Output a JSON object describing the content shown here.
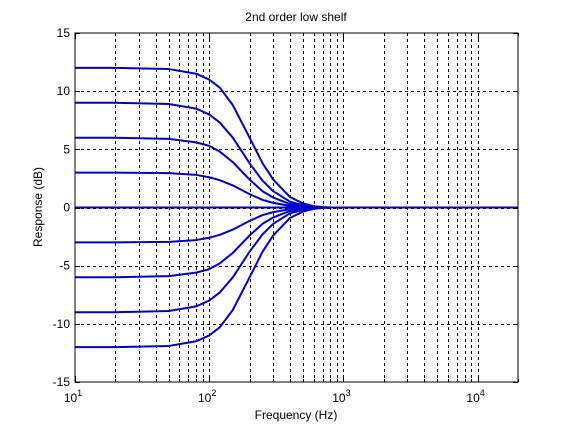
{
  "chart_data": {
    "type": "line",
    "title": "2nd order low shelf",
    "xlabel": "Frequency (Hz)",
    "ylabel": "Response (dB)",
    "xscale": "log",
    "xlim": [
      10,
      20000
    ],
    "ylim": [
      -15,
      15
    ],
    "grid": true,
    "x_tick_labels": [
      {
        "value": 10,
        "base": "10",
        "exp": "1"
      },
      {
        "value": 100,
        "base": "10",
        "exp": "2"
      },
      {
        "value": 1000,
        "base": "10",
        "exp": "3"
      },
      {
        "value": 10000,
        "base": "10",
        "exp": "4"
      }
    ],
    "y_ticks": [
      -15,
      -10,
      -5,
      0,
      5,
      10,
      15
    ],
    "y_tick_labels": [
      "-15",
      "-10",
      "-5",
      "0",
      "5",
      "10",
      "15"
    ],
    "line_color": "#0000cc",
    "shelf_gains_db": [
      12,
      9,
      6,
      3,
      0,
      -3,
      -6,
      -9,
      -12
    ],
    "series_x_hz": [
      10,
      20,
      50,
      80,
      100,
      120,
      150,
      200,
      250,
      300,
      400,
      500,
      600,
      700,
      800,
      1000,
      2000,
      20000
    ],
    "series": [
      {
        "values": [
          12,
          12,
          11.9,
          11.5,
          11.0,
          10.3,
          8.8,
          6.0,
          3.8,
          2.4,
          0.9,
          0.35,
          0.12,
          0.03,
          0,
          0,
          0,
          0
        ]
      },
      {
        "values": [
          9,
          9,
          8.9,
          8.5,
          8.0,
          7.3,
          6.0,
          3.8,
          2.3,
          1.4,
          0.5,
          0.2,
          0.07,
          0.02,
          0,
          0,
          0,
          0
        ]
      },
      {
        "values": [
          6,
          6,
          5.9,
          5.6,
          5.3,
          4.8,
          3.9,
          2.4,
          1.4,
          0.85,
          0.3,
          0.12,
          0.04,
          0.01,
          0,
          0,
          0,
          0
        ]
      },
      {
        "values": [
          3,
          3,
          2.95,
          2.8,
          2.6,
          2.35,
          1.9,
          1.15,
          0.65,
          0.4,
          0.14,
          0.05,
          0.02,
          0,
          0,
          0,
          0,
          0
        ]
      },
      {
        "values": [
          0,
          0,
          0,
          0,
          0,
          0,
          0,
          0,
          0,
          0,
          0,
          0,
          0,
          0,
          0,
          0,
          0,
          0
        ]
      },
      {
        "values": [
          -3,
          -3,
          -2.95,
          -2.8,
          -2.6,
          -2.35,
          -1.9,
          -1.15,
          -0.65,
          -0.4,
          -0.14,
          -0.05,
          -0.02,
          0,
          0,
          0,
          0,
          0
        ]
      },
      {
        "values": [
          -6,
          -6,
          -5.9,
          -5.6,
          -5.3,
          -4.8,
          -3.9,
          -2.4,
          -1.4,
          -0.85,
          -0.3,
          -0.12,
          -0.04,
          -0.01,
          0,
          0,
          0,
          0
        ]
      },
      {
        "values": [
          -9,
          -9,
          -8.9,
          -8.5,
          -8.0,
          -7.3,
          -6.0,
          -3.8,
          -2.3,
          -1.4,
          -0.5,
          -0.2,
          -0.07,
          -0.02,
          0,
          0,
          0,
          0
        ]
      },
      {
        "values": [
          -12,
          -12,
          -11.9,
          -11.5,
          -11.0,
          -10.3,
          -8.8,
          -6.0,
          -3.8,
          -2.4,
          -0.9,
          -0.35,
          -0.12,
          -0.03,
          0,
          0,
          0,
          0
        ]
      }
    ]
  }
}
